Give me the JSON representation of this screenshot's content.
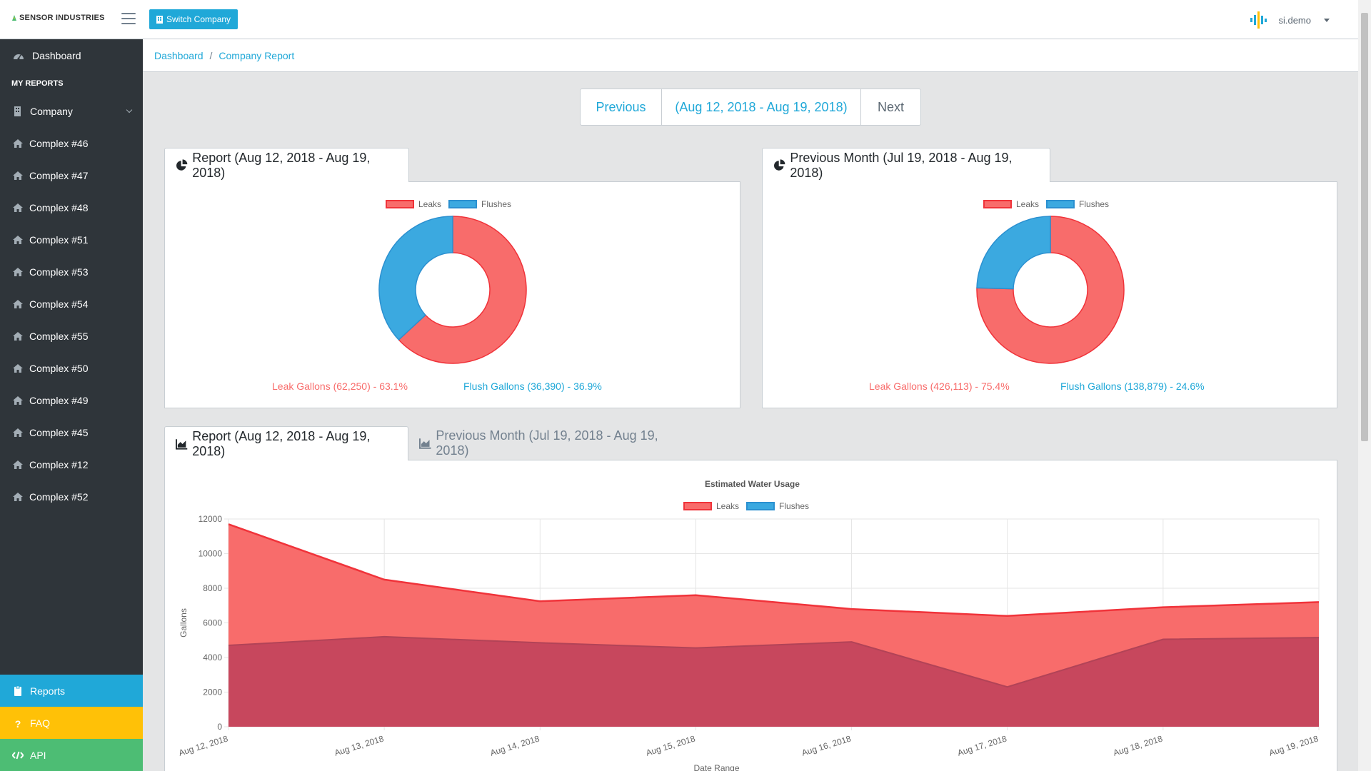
{
  "header": {
    "brand": "SENSOR INDUSTRIES",
    "switch_label": "Switch Company",
    "username": "si.demo"
  },
  "sidebar": {
    "dashboard": "Dashboard",
    "section_title": "MY REPORTS",
    "company": "Company",
    "complexes": [
      "Complex #46",
      "Complex #47",
      "Complex #48",
      "Complex #51",
      "Complex #53",
      "Complex #54",
      "Complex #55",
      "Complex #50",
      "Complex #49",
      "Complex #45",
      "Complex #12",
      "Complex #52"
    ],
    "reports": "Reports",
    "faq": "FAQ",
    "api": "API"
  },
  "breadcrumb": {
    "home": "Dashboard",
    "sep": "/",
    "current": "Company Report"
  },
  "pager": {
    "prev": "Previous",
    "range": "(Aug 12, 2018 - Aug 19, 2018)",
    "next": "Next"
  },
  "panels": {
    "report_tab": "Report (Aug 12, 2018 - Aug 19, 2018)",
    "prev_month_tab": "Previous Month (Jul 19, 2018 - Aug 19, 2018)",
    "legend_leaks": "Leaks",
    "legend_flushes": "Flushes",
    "report_leak_stat": "Leak Gallons (62,250) - 63.1%",
    "report_flush_stat": "Flush Gallons (36,390) - 36.9%",
    "prev_leak_stat": "Leak Gallons (426,113) - 75.4%",
    "prev_flush_stat": "Flush Gallons (138,879) - 24.6%",
    "usage_tab_report": "Report (Aug 12, 2018 - Aug 19, 2018)",
    "usage_tab_prev": "Previous Month (Jul 19, 2018 - Aug 19, 2018)"
  },
  "colors": {
    "leak": "#f86c6b",
    "leak_border": "#f0333a",
    "flush": "#3ba9e0",
    "flush_border": "#2b90d0",
    "overlap": "#c7475d"
  },
  "chart_data": [
    {
      "type": "pie",
      "title": "",
      "categories": [
        "Leaks",
        "Flushes"
      ],
      "values": [
        62250,
        36390
      ]
    },
    {
      "type": "pie",
      "title": "",
      "categories": [
        "Leaks",
        "Flushes"
      ],
      "values": [
        426113,
        138879
      ]
    },
    {
      "type": "area",
      "title": "Estimated Water Usage",
      "xlabel": "Date Range",
      "ylabel": "Gallons",
      "ylim": [
        0,
        12000
      ],
      "yticks": [
        0,
        2000,
        4000,
        6000,
        8000,
        10000,
        12000
      ],
      "categories": [
        "Aug 12, 2018",
        "Aug 13, 2018",
        "Aug 14, 2018",
        "Aug 15, 2018",
        "Aug 16, 2018",
        "Aug 17, 2018",
        "Aug 18, 2018",
        "Aug 19, 2018"
      ],
      "series": [
        {
          "name": "Leaks",
          "values": [
            11700,
            8500,
            7250,
            7600,
            6800,
            6400,
            6900,
            7200
          ]
        },
        {
          "name": "Flushes",
          "values": [
            4700,
            5200,
            4850,
            4550,
            4900,
            2300,
            5050,
            5150
          ]
        }
      ],
      "legend": "top",
      "grid": true
    }
  ]
}
